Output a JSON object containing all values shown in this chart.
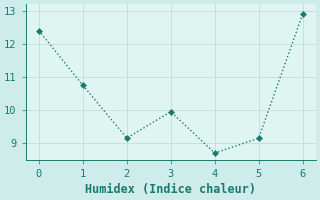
{
  "x": [
    0,
    1,
    2,
    3,
    4,
    5,
    6
  ],
  "y": [
    12.4,
    10.75,
    9.15,
    9.95,
    8.7,
    9.15,
    12.9
  ],
  "line_color": "#1a7a6e",
  "marker": "D",
  "marker_size": 3,
  "xlabel": "Humidex (Indice chaleur)",
  "ylim": [
    8.5,
    13.2
  ],
  "xlim": [
    -0.3,
    6.3
  ],
  "yticks": [
    9,
    10,
    11,
    12,
    13
  ],
  "xticks": [
    0,
    1,
    2,
    3,
    4,
    5,
    6
  ],
  "background_color": "#ceecea",
  "plot_bg_color": "#dff5f2",
  "grid_color": "#c8e0dc",
  "font_color": "#1a7a6e",
  "tick_fontsize": 7.5,
  "xlabel_fontsize": 8.5
}
